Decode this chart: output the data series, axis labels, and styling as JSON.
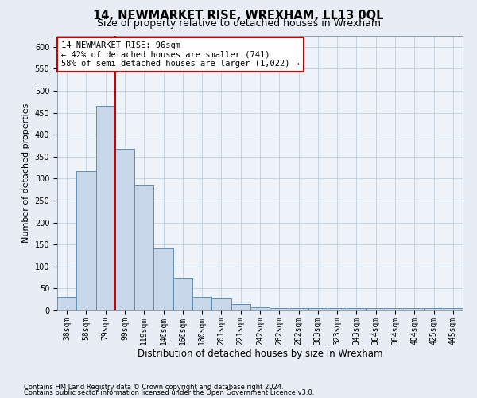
{
  "title": "14, NEWMARKET RISE, WREXHAM, LL13 0QL",
  "subtitle": "Size of property relative to detached houses in Wrexham",
  "xlabel": "Distribution of detached houses by size in Wrexham",
  "ylabel": "Number of detached properties",
  "categories": [
    "38sqm",
    "58sqm",
    "79sqm",
    "99sqm",
    "119sqm",
    "140sqm",
    "160sqm",
    "180sqm",
    "201sqm",
    "221sqm",
    "242sqm",
    "262sqm",
    "282sqm",
    "303sqm",
    "323sqm",
    "343sqm",
    "364sqm",
    "384sqm",
    "404sqm",
    "425sqm",
    "445sqm"
  ],
  "values": [
    31,
    317,
    465,
    367,
    285,
    142,
    75,
    31,
    28,
    15,
    8,
    5,
    5,
    5,
    5,
    5,
    5,
    5,
    5,
    5,
    5
  ],
  "bar_color": "#c8d8ea",
  "bar_edge_color": "#6090b8",
  "vline_x": 2.5,
  "vline_color": "#cc0000",
  "annotation_text": "14 NEWMARKET RISE: 96sqm\n← 42% of detached houses are smaller (741)\n58% of semi-detached houses are larger (1,022) →",
  "annotation_box_color": "#ffffff",
  "annotation_box_edgecolor": "#cc0000",
  "ylim": [
    0,
    625
  ],
  "yticks": [
    0,
    50,
    100,
    150,
    200,
    250,
    300,
    350,
    400,
    450,
    500,
    550,
    600
  ],
  "footnote1": "Contains HM Land Registry data © Crown copyright and database right 2024.",
  "footnote2": "Contains public sector information licensed under the Open Government Licence v3.0.",
  "bg_color": "#e8edf5",
  "plot_bg_color": "#eef3fa",
  "title_fontsize": 10.5,
  "subtitle_fontsize": 9,
  "tick_fontsize": 7,
  "ylabel_fontsize": 8,
  "xlabel_fontsize": 8.5,
  "annot_fontsize": 7.5,
  "footnote_fontsize": 6
}
